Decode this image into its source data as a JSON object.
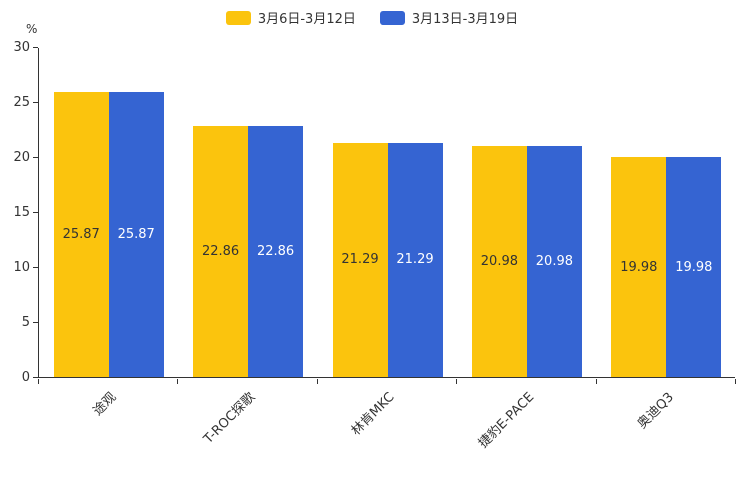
{
  "chart_data": {
    "type": "bar",
    "title": "",
    "categories": [
      "途观",
      "T-ROC探歌",
      "林肯MKC",
      "捷豹E-PACE",
      "奥迪Q3"
    ],
    "series": [
      {
        "name": "3月6日-3月12日",
        "color": "#FBC40D",
        "label_color": "#333333",
        "values": [
          25.87,
          22.86,
          21.29,
          20.98,
          19.98
        ]
      },
      {
        "name": "3月13日-3月19日",
        "color": "#3564D2",
        "label_color": "#ffffff",
        "values": [
          25.87,
          22.86,
          21.29,
          20.98,
          19.98
        ]
      }
    ],
    "xlabel": "",
    "ylabel": "%",
    "ylim": [
      0,
      30
    ],
    "yticks": [
      0,
      5,
      10,
      15,
      20,
      25,
      30
    ],
    "grid": false,
    "legend_position": "top",
    "value_label_decimals": 2
  }
}
